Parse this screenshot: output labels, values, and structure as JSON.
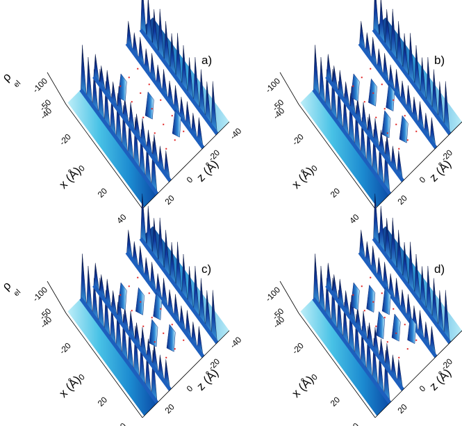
{
  "chart_data": [
    {
      "type": "surface",
      "panel_label": "a)",
      "zlabel": "ρ",
      "zlabel_sub": "el",
      "xlabel": "x (Å)",
      "ylabel": "z (Å)",
      "x_ticks": [
        "-40",
        "-20",
        "0",
        "20",
        "40"
      ],
      "z_ticks": [
        "-40",
        "-20",
        "0",
        "20"
      ],
      "rho_ticks": [
        "-100",
        "-50"
      ],
      "ridges": [
        {
          "z_position": -40,
          "peaks": 13,
          "depth": -110
        },
        {
          "z_position": -20,
          "peaks": 13,
          "depth": -100
        },
        {
          "z_position": 20,
          "peaks": 13,
          "depth": -100
        },
        {
          "z_position": 40,
          "peaks": 13,
          "depth": -110
        }
      ],
      "cavity_walls": 3,
      "colors": {
        "high": "#cff3fb",
        "low": "#061a5e",
        "points": "#e02020"
      }
    },
    {
      "type": "surface",
      "panel_label": "b)",
      "xlabel": "x (Å)",
      "ylabel": "z (Å)",
      "x_ticks": [
        "-40",
        "-20",
        "0",
        "20",
        "40"
      ],
      "z_ticks": [
        "-40",
        "-20",
        "0",
        "20"
      ],
      "rho_ticks": [
        "-100",
        "-50"
      ],
      "cavity_walls": 5
    },
    {
      "type": "surface",
      "panel_label": "c)",
      "zlabel": "ρ",
      "zlabel_sub": "el",
      "xlabel": "x (Å)",
      "ylabel": "z (Å)",
      "x_ticks": [
        "-40",
        "-20",
        "0",
        "20",
        "40"
      ],
      "z_ticks": [
        "-40",
        "-20",
        "0",
        "20"
      ],
      "rho_ticks": [
        "-100",
        "-50"
      ],
      "cavity_walls": 5
    },
    {
      "type": "surface",
      "panel_label": "d)",
      "xlabel": "x (Å)",
      "ylabel": "z (Å)",
      "x_ticks": [
        "-40",
        "-20",
        "0",
        "20",
        "40"
      ],
      "z_ticks": [
        "-40",
        "-20",
        "0",
        "20"
      ],
      "rho_ticks": [
        "-100",
        "-50"
      ],
      "cavity_walls": 6
    }
  ]
}
